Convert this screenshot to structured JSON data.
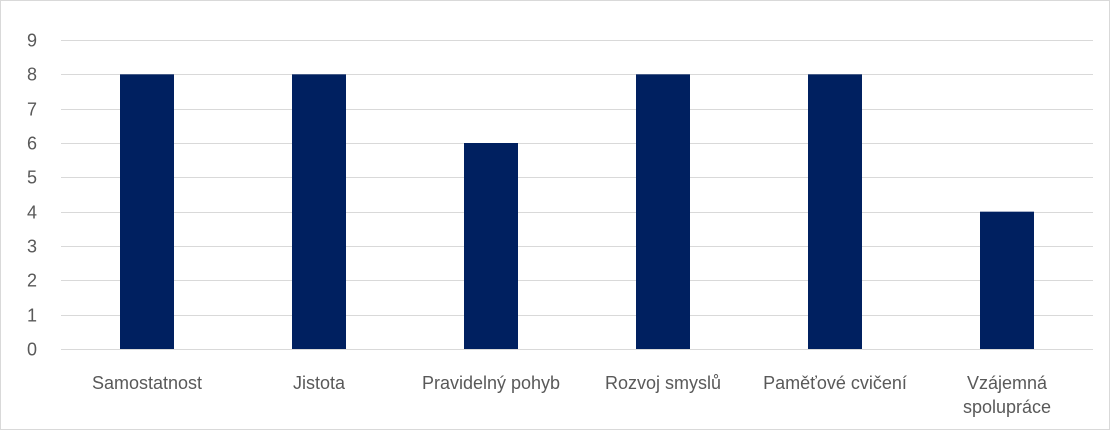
{
  "chart_data": {
    "type": "bar",
    "title": "",
    "xlabel": "",
    "ylabel": "",
    "categories": [
      [
        "Samostatnost"
      ],
      [
        "Jistota"
      ],
      [
        "Pravidelný pohyb"
      ],
      [
        "Rozvoj smyslů"
      ],
      [
        "Paměťové cvičení"
      ],
      [
        "Vzájemná",
        "spolupráce"
      ]
    ],
    "values": [
      8,
      8,
      6,
      8,
      8,
      4
    ],
    "ylim": [
      0,
      9
    ],
    "yticks": [
      0,
      1,
      2,
      3,
      4,
      5,
      6,
      7,
      8,
      9
    ],
    "grid": true,
    "legend": "none",
    "colors": {
      "bar": "#002060",
      "grid": "#d9d9d9",
      "text": "#595959"
    }
  }
}
